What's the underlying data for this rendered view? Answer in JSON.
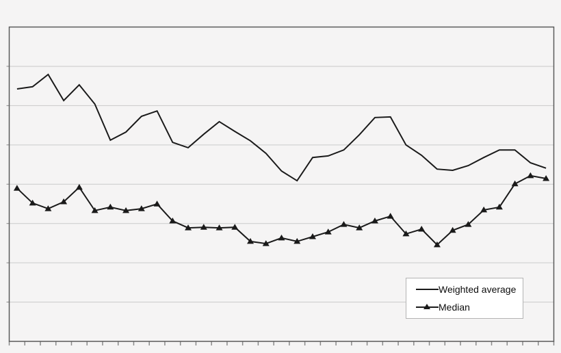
{
  "colors": {
    "background": "#f5f4f4",
    "series_line": "#1a1a1a",
    "gridline": "#c9c9c9",
    "plot_border": "#5a5a5a",
    "tick": "#8a8a8a",
    "legend_background": "#ffffff",
    "legend_border": "#b3b3b3",
    "legend_text": "#0d0d0d"
  },
  "chart_data": {
    "type": "line",
    "title": "",
    "xlabel": "",
    "ylabel": "",
    "x_axis": {
      "labels_visible": false,
      "category_count": 35,
      "boundary_tick_count": 36
    },
    "y_axis": {
      "labels_visible": false,
      "min": 0,
      "max": 100,
      "gridline_step": 12.5,
      "value_scale": "percent-of-plot-height"
    },
    "grid": true,
    "legend": {
      "position": "bottom-right",
      "entries": [
        "Weighted average",
        "Median"
      ]
    },
    "series": [
      {
        "name": "Weighted average",
        "marker": "none",
        "values": [
          80.3,
          81.0,
          84.9,
          76.6,
          81.6,
          75.5,
          64.0,
          66.6,
          71.6,
          73.3,
          63.3,
          61.6,
          65.9,
          69.9,
          66.8,
          63.8,
          59.8,
          54.2,
          51.1,
          58.5,
          59.0,
          60.9,
          65.7,
          71.2,
          71.4,
          62.5,
          59.2,
          54.8,
          54.4,
          55.9,
          58.5,
          60.9,
          60.9,
          56.8,
          55.1
        ]
      },
      {
        "name": "Median",
        "marker": "triangle",
        "values": [
          48.7,
          44.0,
          42.2,
          44.4,
          49.0,
          41.6,
          42.7,
          41.6,
          42.2,
          43.7,
          38.3,
          36.1,
          36.3,
          36.1,
          36.3,
          31.8,
          31.1,
          32.9,
          31.8,
          33.3,
          34.8,
          37.2,
          36.1,
          38.3,
          39.8,
          34.2,
          35.7,
          30.7,
          35.3,
          37.2,
          41.8,
          42.7,
          50.1,
          52.7,
          51.8
        ]
      }
    ]
  }
}
